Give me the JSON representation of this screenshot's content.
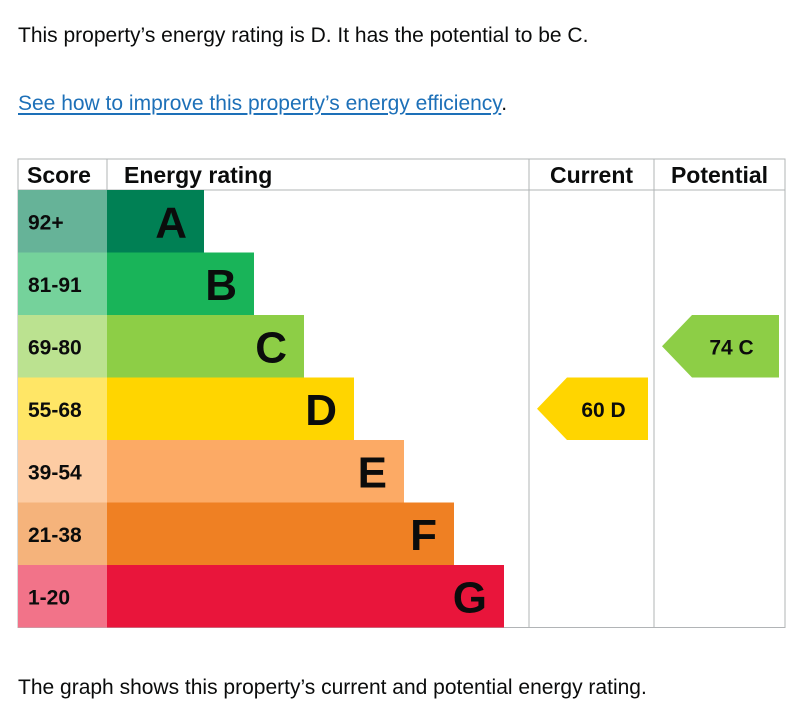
{
  "intro_text": "This property’s energy rating is D. It has the potential to be C.",
  "link_text": "See how to improve this property’s energy efficiency",
  "link_suffix": ".",
  "caption_text": "The graph shows this property’s current and potential energy rating.",
  "chart_data": {
    "type": "bar",
    "headers": {
      "score": "Score",
      "rating": "Energy rating",
      "current": "Current",
      "potential": "Potential"
    },
    "bands": [
      {
        "letter": "A",
        "score": "92+",
        "color": "#008054",
        "score_bg": "#66b398"
      },
      {
        "letter": "B",
        "score": "81-91",
        "color": "#19b459",
        "score_bg": "#75d29b"
      },
      {
        "letter": "C",
        "score": "69-80",
        "color": "#8dce46",
        "score_bg": "#bbe290"
      },
      {
        "letter": "D",
        "score": "55-68",
        "color": "#ffd500",
        "score_bg": "#ffe666"
      },
      {
        "letter": "E",
        "score": "39-54",
        "color": "#fcaa65",
        "score_bg": "#fdcca3"
      },
      {
        "letter": "F",
        "score": "21-38",
        "color": "#ef8023",
        "score_bg": "#f5b37b"
      },
      {
        "letter": "G",
        "score": "1-20",
        "color": "#e9153b",
        "score_bg": "#f27389"
      }
    ],
    "current": {
      "value": 60,
      "letter": "D",
      "label": "60  D",
      "color": "#ffd500"
    },
    "potential": {
      "value": 74,
      "letter": "C",
      "label": "74  C",
      "color": "#8dce46"
    }
  }
}
